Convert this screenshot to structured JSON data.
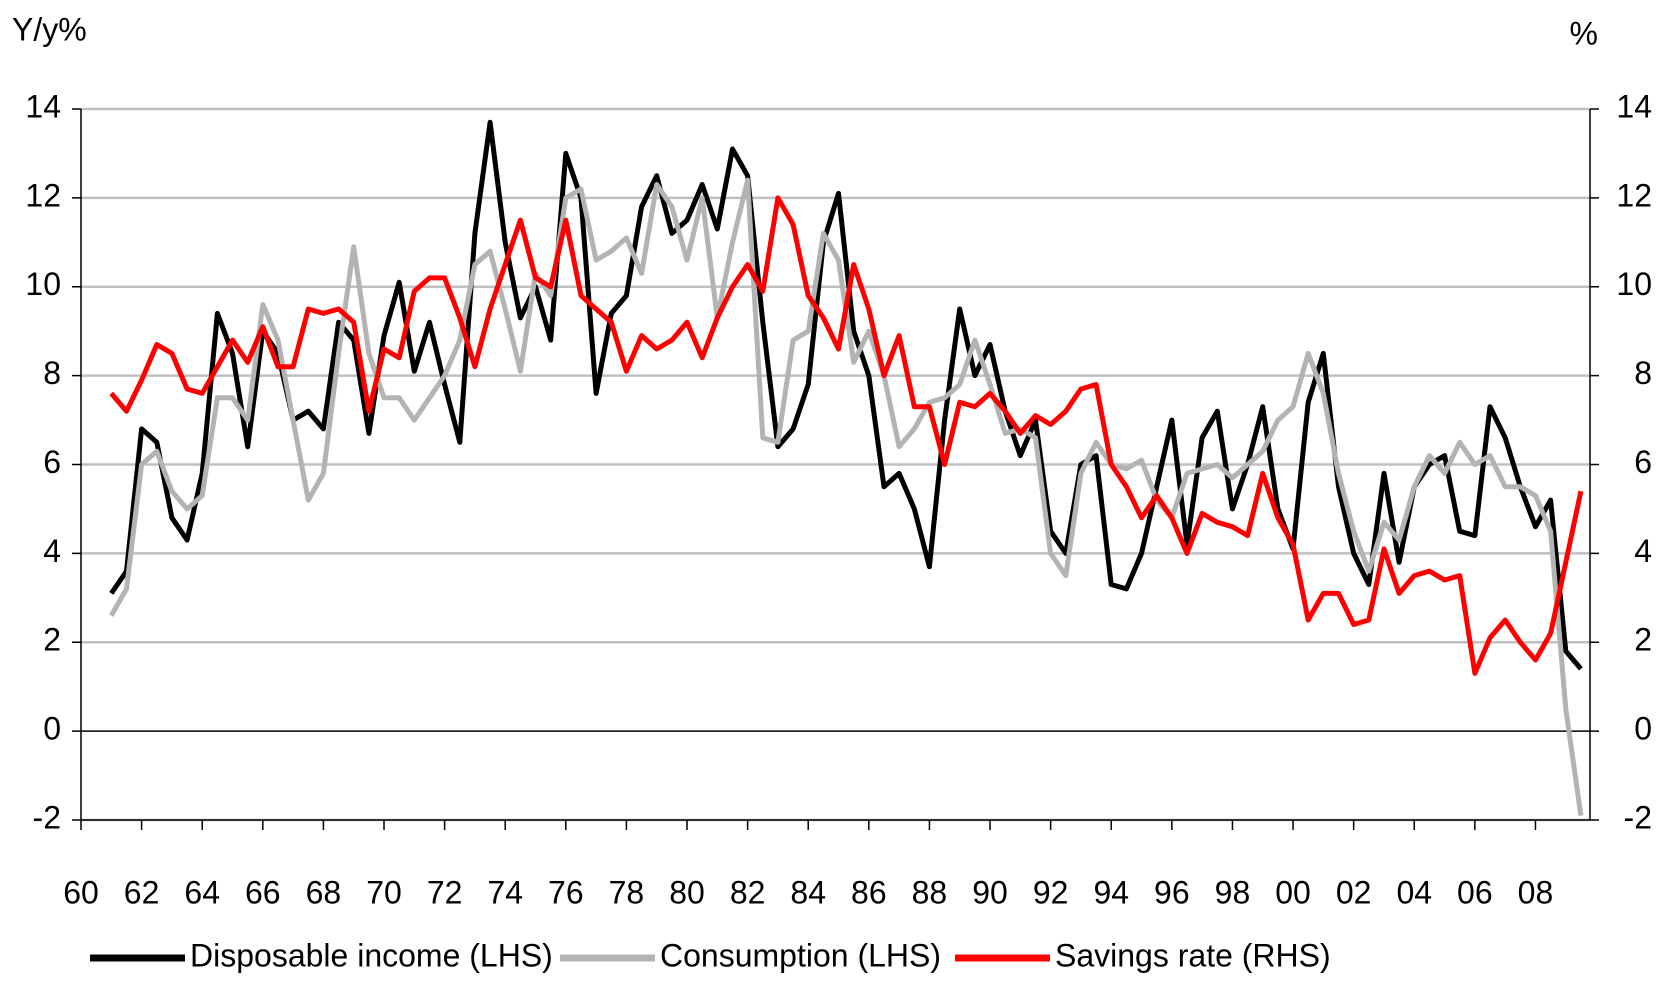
{
  "chart_data": {
    "type": "line",
    "y_label": "Y/y%",
    "y2_label": "%",
    "x": [
      1961,
      1961.5,
      1962,
      1962.5,
      1963,
      1963.5,
      1964,
      1964.5,
      1965,
      1965.5,
      1966,
      1966.5,
      1967,
      1967.5,
      1968,
      1968.5,
      1969,
      1969.5,
      1970,
      1970.5,
      1971,
      1971.5,
      1972,
      1972.5,
      1973,
      1973.5,
      1974,
      1974.5,
      1975,
      1975.5,
      1976,
      1976.5,
      1977,
      1977.5,
      1978,
      1978.5,
      1979,
      1979.5,
      1980,
      1980.5,
      1981,
      1981.5,
      1982,
      1982.5,
      1983,
      1983.5,
      1984,
      1984.5,
      1985,
      1985.5,
      1986,
      1986.5,
      1987,
      1987.5,
      1988,
      1988.5,
      1989,
      1989.5,
      1990,
      1990.5,
      1991,
      1991.5,
      1992,
      1992.5,
      1993,
      1993.5,
      1994,
      1994.5,
      1995,
      1995.5,
      1996,
      1996.5,
      1997,
      1997.5,
      1998,
      1998.5,
      1999,
      1999.5,
      2000,
      2000.5,
      2001,
      2001.5,
      2002,
      2002.5,
      2003,
      2003.5,
      2004,
      2004.5,
      2005,
      2005.5,
      2006,
      2006.5,
      2007,
      2007.5,
      2008,
      2008.5,
      2009,
      2009.5
    ],
    "series": [
      {
        "name": "Disposable income (LHS)",
        "color": "#000000",
        "values": [
          3.1,
          3.6,
          6.8,
          6.5,
          4.8,
          4.3,
          5.8,
          9.4,
          8.5,
          6.4,
          9.0,
          8.5,
          7.0,
          7.2,
          6.8,
          9.2,
          8.8,
          6.7,
          8.9,
          10.1,
          8.1,
          9.2,
          7.8,
          6.5,
          11.2,
          13.7,
          11.0,
          9.3,
          10.0,
          8.8,
          13.0,
          12.0,
          7.6,
          9.4,
          9.8,
          11.8,
          12.5,
          11.2,
          11.5,
          12.3,
          11.3,
          13.1,
          12.5,
          9.2,
          6.4,
          6.8,
          7.8,
          11.0,
          12.1,
          9.0,
          8.0,
          5.5,
          5.8,
          5.0,
          3.7,
          7.0,
          9.5,
          8.0,
          8.7,
          7.2,
          6.2,
          7.0,
          4.5,
          4.0,
          6.0,
          6.2,
          3.3,
          3.2,
          4.0,
          5.5,
          7.0,
          4.2,
          6.6,
          7.2,
          5.0,
          6.0,
          7.3,
          5.0,
          4.1,
          7.4,
          8.5,
          5.5,
          4.0,
          3.3,
          5.8,
          3.8,
          5.5,
          6.0,
          6.2,
          4.5,
          4.4,
          7.3,
          6.6,
          5.5,
          4.6,
          5.2,
          1.8,
          1.4
        ]
      },
      {
        "name": "Consumption (LHS)",
        "color": "#b3b3b3",
        "values": [
          2.6,
          3.2,
          6.0,
          6.3,
          5.4,
          5.0,
          5.3,
          7.5,
          7.5,
          7.0,
          9.6,
          8.8,
          7.0,
          5.2,
          5.8,
          8.5,
          10.9,
          8.5,
          7.5,
          7.5,
          7.0,
          7.5,
          8.0,
          8.8,
          10.5,
          10.8,
          9.5,
          8.1,
          10.3,
          9.8,
          12.0,
          12.2,
          10.6,
          10.8,
          11.1,
          10.3,
          12.3,
          11.8,
          10.6,
          12.0,
          9.3,
          11.0,
          12.4,
          6.6,
          6.5,
          8.8,
          9.0,
          11.2,
          10.6,
          8.3,
          9.0,
          8.0,
          6.4,
          6.8,
          7.4,
          7.5,
          7.8,
          8.8,
          7.8,
          6.7,
          6.8,
          6.6,
          4.0,
          3.5,
          5.8,
          6.5,
          6.0,
          5.9,
          6.1,
          5.2,
          4.8,
          5.8,
          5.9,
          6.0,
          5.7,
          6.0,
          6.3,
          7.0,
          7.3,
          8.5,
          7.6,
          5.8,
          4.5,
          3.6,
          4.7,
          4.3,
          5.5,
          6.2,
          5.8,
          6.5,
          6.0,
          6.2,
          5.5,
          5.5,
          5.3,
          4.5,
          0.5,
          -1.9
        ]
      },
      {
        "name": "Savings rate (RHS)",
        "color": "#ff0000",
        "axis": "y2",
        "values": [
          7.6,
          7.2,
          7.9,
          8.7,
          8.5,
          7.7,
          7.6,
          8.2,
          8.8,
          8.3,
          9.1,
          8.2,
          8.2,
          9.5,
          9.4,
          9.5,
          9.2,
          7.2,
          8.6,
          8.4,
          9.9,
          10.2,
          10.2,
          9.3,
          8.2,
          9.5,
          10.5,
          11.5,
          10.2,
          10.0,
          11.5,
          9.8,
          9.5,
          9.2,
          8.1,
          8.9,
          8.6,
          8.8,
          9.2,
          8.4,
          9.3,
          10.0,
          10.5,
          9.9,
          12.0,
          11.4,
          9.8,
          9.3,
          8.6,
          10.5,
          9.5,
          8.0,
          8.9,
          7.3,
          7.3,
          6.0,
          7.4,
          7.3,
          7.6,
          7.2,
          6.7,
          7.1,
          6.9,
          7.2,
          7.7,
          7.8,
          6.0,
          5.5,
          4.8,
          5.3,
          4.8,
          4.0,
          4.9,
          4.7,
          4.6,
          4.4,
          5.8,
          4.8,
          4.2,
          2.5,
          3.1,
          3.1,
          2.4,
          2.5,
          4.1,
          3.1,
          3.5,
          3.6,
          3.4,
          3.5,
          1.3,
          2.1,
          2.5,
          2.0,
          1.6,
          2.2,
          3.8,
          5.4
        ]
      }
    ],
    "xlim": [
      1960,
      2009.8
    ],
    "xticks": [
      {
        "value": 1960,
        "label": "60"
      },
      {
        "value": 1962,
        "label": "62"
      },
      {
        "value": 1964,
        "label": "64"
      },
      {
        "value": 1966,
        "label": "66"
      },
      {
        "value": 1968,
        "label": "68"
      },
      {
        "value": 1970,
        "label": "70"
      },
      {
        "value": 1972,
        "label": "72"
      },
      {
        "value": 1974,
        "label": "74"
      },
      {
        "value": 1976,
        "label": "76"
      },
      {
        "value": 1978,
        "label": "78"
      },
      {
        "value": 1980,
        "label": "80"
      },
      {
        "value": 1982,
        "label": "82"
      },
      {
        "value": 1984,
        "label": "84"
      },
      {
        "value": 1986,
        "label": "86"
      },
      {
        "value": 1988,
        "label": "88"
      },
      {
        "value": 1990,
        "label": "90"
      },
      {
        "value": 1992,
        "label": "92"
      },
      {
        "value": 1994,
        "label": "94"
      },
      {
        "value": 1996,
        "label": "96"
      },
      {
        "value": 1998,
        "label": "98"
      },
      {
        "value": 2000,
        "label": "00"
      },
      {
        "value": 2002,
        "label": "02"
      },
      {
        "value": 2004,
        "label": "04"
      },
      {
        "value": 2006,
        "label": "06"
      },
      {
        "value": 2008,
        "label": "08"
      }
    ],
    "ylim": [
      -2,
      14
    ],
    "yticks": [
      -2,
      0,
      2,
      4,
      6,
      8,
      10,
      12,
      14
    ],
    "y2lim": [
      -2,
      14
    ],
    "y2ticks": [
      -2,
      0,
      2,
      4,
      6,
      8,
      10,
      12,
      14
    ],
    "grid": true
  }
}
